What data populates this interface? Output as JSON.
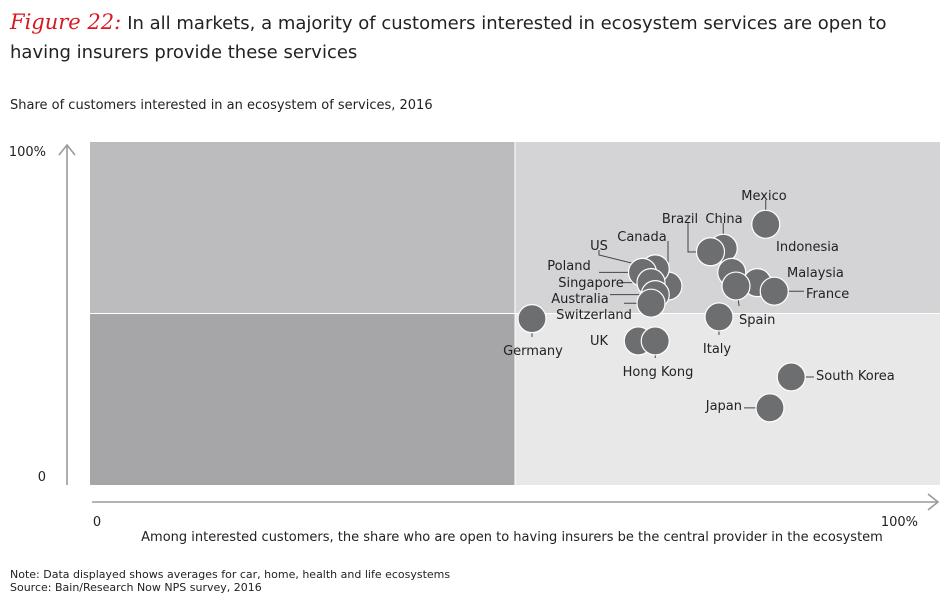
{
  "figure_label": "Figure 22:",
  "title_text": "In all markets, a majority of customers interested in ecosystem services are open to having insurers provide these services",
  "note": "Note: Data displayed shows averages for car, home, health and life ecosystems",
  "source": "Source: Bain/Research Now NPS survey, 2016",
  "chart_data": {
    "type": "scatter",
    "title": "Share of customers interested in an ecosystem of services, 2016",
    "xlabel": "Among interested customers, the share who are open to having insurers be the central provider in the ecosystem",
    "ylabel": "",
    "xlim": [
      0,
      100
    ],
    "ylim": [
      0,
      100
    ],
    "x_tick_labels": [
      "0",
      "100%"
    ],
    "y_tick_labels": [
      "0",
      "100%"
    ],
    "quadrant_split": {
      "x": 50,
      "y": 50
    },
    "colors": {
      "upper_left": "#bcbcbe",
      "lower_left": "#a6a6a8",
      "upper_right": "#d4d4d6",
      "lower_right": "#e8e8e8",
      "point": "#6d6e70",
      "point_stroke": "#ffffff",
      "axis": "#9a9a9a"
    },
    "points": [
      {
        "label": "Mexico",
        "x": 79.5,
        "y": 76
      },
      {
        "label": "China",
        "x": 74.5,
        "y": 69
      },
      {
        "label": "Brazil",
        "x": 73,
        "y": 68
      },
      {
        "label": "Indonesia",
        "x": 75.5,
        "y": 62
      },
      {
        "label": "Malaysia",
        "x": 78.5,
        "y": 59
      },
      {
        "label": "France",
        "x": 80.5,
        "y": 56.5
      },
      {
        "label": "Spain",
        "x": 76,
        "y": 58
      },
      {
        "label": "Canada",
        "x": 68,
        "y": 58
      },
      {
        "label": "US",
        "x": 66.5,
        "y": 63
      },
      {
        "label": "Poland",
        "x": 65,
        "y": 62
      },
      {
        "label": "Singapore",
        "x": 66,
        "y": 59
      },
      {
        "label": "Australia",
        "x": 66.5,
        "y": 55.5
      },
      {
        "label": "Switzerland",
        "x": 66,
        "y": 53
      },
      {
        "label": "Germany",
        "x": 52,
        "y": 48.5
      },
      {
        "label": "UK",
        "x": 64.5,
        "y": 42
      },
      {
        "label": "Hong Kong",
        "x": 66.5,
        "y": 42
      },
      {
        "label": "Italy",
        "x": 74,
        "y": 49
      },
      {
        "label": "South Korea",
        "x": 82.5,
        "y": 31.5
      },
      {
        "label": "Japan",
        "x": 80,
        "y": 22.5
      }
    ]
  }
}
